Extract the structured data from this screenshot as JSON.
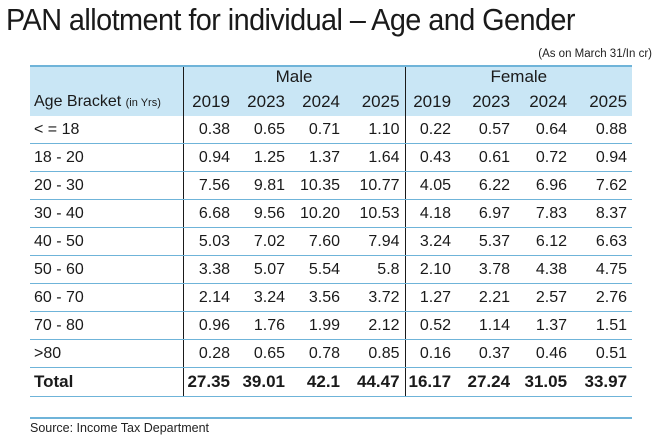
{
  "title": "PAN allotment for individual – Age and Gender",
  "subtitle": "(As on March 31/In cr)",
  "header": {
    "bracket_label": "Age Bracket",
    "bracket_unit": "(in Yrs)",
    "groups": [
      "Male",
      "Female"
    ],
    "years": [
      "2019",
      "2023",
      "2024",
      "2025"
    ]
  },
  "rows": [
    {
      "bracket": "< = 18",
      "male": [
        "0.38",
        "0.65",
        "0.71",
        "1.10"
      ],
      "female": [
        "0.22",
        "0.57",
        "0.64",
        "0.88"
      ]
    },
    {
      "bracket": "18 - 20",
      "male": [
        "0.94",
        "1.25",
        "1.37",
        "1.64"
      ],
      "female": [
        "0.43",
        "0.61",
        "0.72",
        "0.94"
      ]
    },
    {
      "bracket": "20 - 30",
      "male": [
        "7.56",
        "9.81",
        "10.35",
        "10.77"
      ],
      "female": [
        "4.05",
        "6.22",
        "6.96",
        "7.62"
      ]
    },
    {
      "bracket": "30 - 40",
      "male": [
        "6.68",
        "9.56",
        "10.20",
        "10.53"
      ],
      "female": [
        "4.18",
        "6.97",
        "7.83",
        "8.37"
      ]
    },
    {
      "bracket": "40 - 50",
      "male": [
        "5.03",
        "7.02",
        "7.60",
        "7.94"
      ],
      "female": [
        "3.24",
        "5.37",
        "6.12",
        "6.63"
      ]
    },
    {
      "bracket": "50 - 60",
      "male": [
        "3.38",
        "5.07",
        "5.54",
        "5.8"
      ],
      "female": [
        "2.10",
        "3.78",
        "4.38",
        "4.75"
      ]
    },
    {
      "bracket": "60 - 70",
      "male": [
        "2.14",
        "3.24",
        "3.56",
        "3.72"
      ],
      "female": [
        "1.27",
        "2.21",
        "2.57",
        "2.76"
      ]
    },
    {
      "bracket": "70 - 80",
      "male": [
        "0.96",
        "1.76",
        "1.99",
        "2.12"
      ],
      "female": [
        "0.52",
        "1.14",
        "1.37",
        "1.51"
      ]
    },
    {
      "bracket": ">80",
      "male": [
        "0.28",
        "0.65",
        "0.78",
        "0.85"
      ],
      "female": [
        "0.16",
        "0.37",
        "0.46",
        "0.51"
      ]
    }
  ],
  "total": {
    "bracket": "Total",
    "male": [
      "27.35",
      "39.01",
      "42.1",
      "44.47"
    ],
    "female": [
      "16.17",
      "27.24",
      "31.05",
      "33.97"
    ]
  },
  "source": "Source: Income Tax Department",
  "colors": {
    "header_bg": "#c9e6f5",
    "rule": "#6fb4d9",
    "text": "#1a1a1a"
  }
}
